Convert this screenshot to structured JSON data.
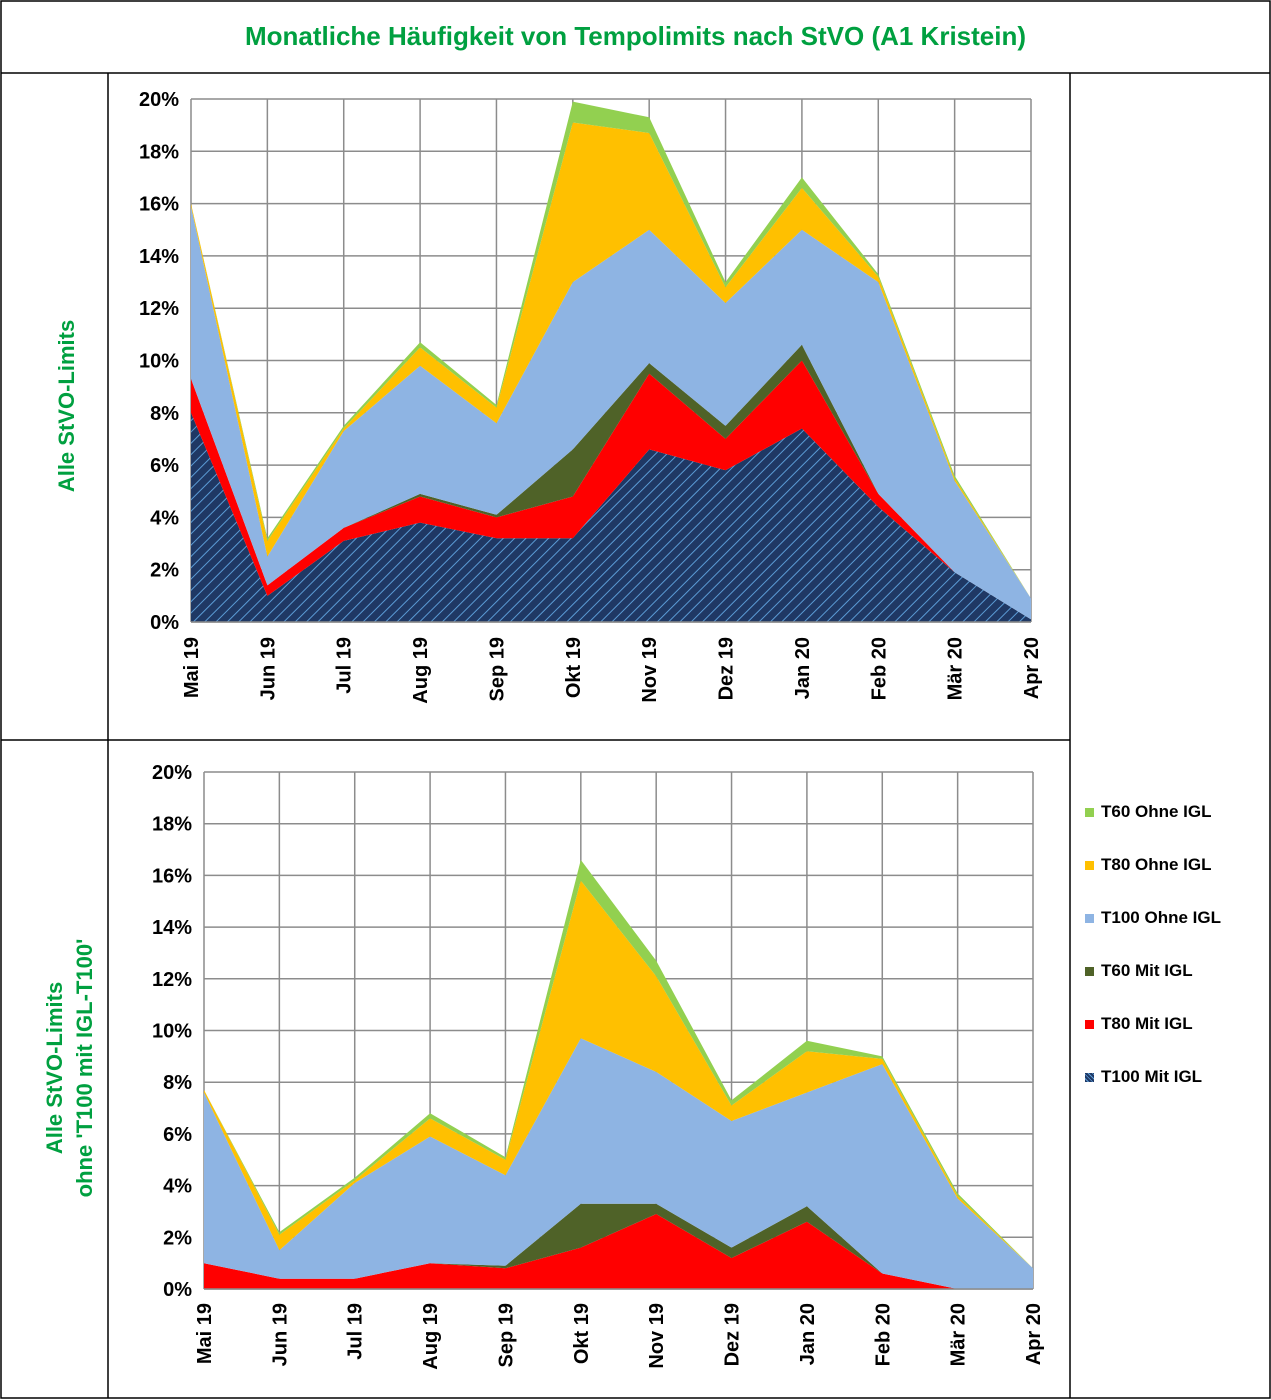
{
  "title": "Monatliche Häufigkeit von Tempolimits nach StVO (A1 Kristein)",
  "row_labels": [
    [
      "Alle StVO-Limits"
    ],
    [
      "Alle StVO-Limits",
      "ohne 'T100 mit IGL-T100'"
    ]
  ],
  "legend": [
    {
      "name": "T60 Ohne IGL",
      "color": "#92d050",
      "pattern": false
    },
    {
      "name": "T80 Ohne IGL",
      "color": "#ffc000",
      "pattern": false
    },
    {
      "name": "T100 Ohne IGL",
      "color": "#8eb4e3",
      "pattern": false
    },
    {
      "name": "T60 Mit IGL",
      "color": "#4f6228",
      "pattern": false
    },
    {
      "name": "T80 Mit IGL",
      "color": "#ff0000",
      "pattern": false
    },
    {
      "name": "T100 Mit IGL",
      "color": "#1f3864",
      "pattern": true
    }
  ],
  "chart_data": [
    {
      "type": "area",
      "stacked": true,
      "categories": [
        "Mai 19",
        "Jun 19",
        "Jul 19",
        "Aug 19",
        "Sep 19",
        "Okt 19",
        "Nov 19",
        "Dez 19",
        "Jan 20",
        "Feb 20",
        "Mär 20",
        "Apr 20"
      ],
      "y_ticks": [
        "0%",
        "2%",
        "4%",
        "6%",
        "8%",
        "10%",
        "12%",
        "14%",
        "16%",
        "18%",
        "20%"
      ],
      "ylim": [
        0,
        20
      ],
      "grid": true,
      "series": [
        {
          "name": "T100 Mit IGL",
          "color": "#1f3864",
          "pattern": true,
          "values": [
            8.0,
            1.0,
            3.1,
            3.8,
            3.2,
            3.2,
            6.6,
            5.8,
            7.4,
            4.4,
            1.9,
            0.1
          ]
        },
        {
          "name": "T80 Mit IGL",
          "color": "#ff0000",
          "pattern": false,
          "values": [
            1.3,
            0.4,
            0.5,
            1.0,
            0.8,
            1.6,
            2.9,
            1.2,
            2.6,
            0.5,
            0.0,
            0.0
          ]
        },
        {
          "name": "T60 Mit IGL",
          "color": "#4f6228",
          "pattern": false,
          "values": [
            0.0,
            0.0,
            0.0,
            0.1,
            0.1,
            1.8,
            0.4,
            0.5,
            0.6,
            0.0,
            0.0,
            0.0
          ]
        },
        {
          "name": "T100 Ohne IGL",
          "color": "#8eb4e3",
          "pattern": false,
          "values": [
            6.6,
            1.1,
            3.7,
            4.9,
            3.5,
            6.4,
            5.1,
            4.7,
            4.4,
            8.1,
            3.5,
            0.8
          ]
        },
        {
          "name": "T80 Ohne IGL",
          "color": "#ffc000",
          "pattern": false,
          "values": [
            0.1,
            0.6,
            0.1,
            0.7,
            0.6,
            6.1,
            3.7,
            0.6,
            1.6,
            0.2,
            0.1,
            0.0
          ]
        },
        {
          "name": "T60 Ohne IGL",
          "color": "#92d050",
          "pattern": false,
          "values": [
            0.0,
            0.1,
            0.1,
            0.2,
            0.1,
            0.8,
            0.6,
            0.2,
            0.4,
            0.1,
            0.1,
            0.0
          ]
        }
      ]
    },
    {
      "type": "area",
      "stacked": true,
      "categories": [
        "Mai 19",
        "Jun 19",
        "Jul 19",
        "Aug 19",
        "Sep 19",
        "Okt 19",
        "Nov 19",
        "Dez 19",
        "Jan 20",
        "Feb 20",
        "Mär 20",
        "Apr 20"
      ],
      "y_ticks": [
        "0%",
        "2%",
        "4%",
        "6%",
        "8%",
        "10%",
        "12%",
        "14%",
        "16%",
        "18%",
        "20%"
      ],
      "ylim": [
        0,
        20
      ],
      "grid": true,
      "series": [
        {
          "name": "T80 Mit IGL",
          "color": "#ff0000",
          "pattern": false,
          "values": [
            1.0,
            0.4,
            0.4,
            1.0,
            0.8,
            1.6,
            2.9,
            1.2,
            2.6,
            0.6,
            0.0,
            0.0
          ]
        },
        {
          "name": "T60 Mit IGL",
          "color": "#4f6228",
          "pattern": false,
          "values": [
            0.0,
            0.0,
            0.0,
            0.0,
            0.1,
            1.7,
            0.4,
            0.4,
            0.6,
            0.0,
            0.0,
            0.0
          ]
        },
        {
          "name": "T100 Ohne IGL",
          "color": "#8eb4e3",
          "pattern": false,
          "values": [
            6.6,
            1.1,
            3.7,
            4.9,
            3.5,
            6.4,
            5.1,
            4.9,
            4.4,
            8.1,
            3.5,
            0.8
          ]
        },
        {
          "name": "T80 Ohne IGL",
          "color": "#ffc000",
          "pattern": false,
          "values": [
            0.1,
            0.6,
            0.1,
            0.7,
            0.6,
            6.1,
            3.7,
            0.6,
            1.6,
            0.2,
            0.1,
            0.0
          ]
        },
        {
          "name": "T60 Ohne IGL",
          "color": "#92d050",
          "pattern": false,
          "values": [
            0.0,
            0.1,
            0.1,
            0.2,
            0.1,
            0.8,
            0.6,
            0.2,
            0.4,
            0.1,
            0.1,
            0.0
          ]
        }
      ]
    }
  ]
}
